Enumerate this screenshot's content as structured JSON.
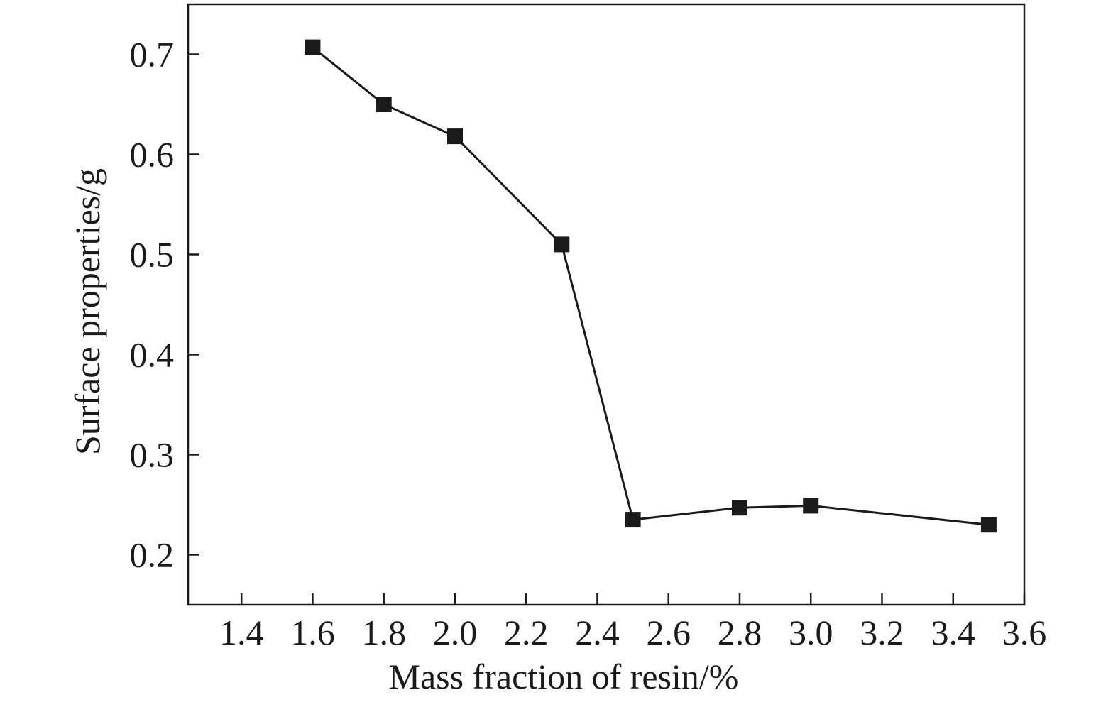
{
  "chart_data": {
    "type": "line",
    "title": "",
    "xlabel": "Mass fraction of resin/%",
    "ylabel": "Surface properties/g",
    "xlim": [
      1.25,
      3.6
    ],
    "ylim": [
      0.15,
      0.75
    ],
    "xticks": [
      "1.4",
      "1.6",
      "1.8",
      "2.0",
      "2.2",
      "2.4",
      "2.6",
      "2.8",
      "3.0",
      "3.2",
      "3.4",
      "3.6"
    ],
    "yticks": [
      "0.2",
      "0.3",
      "0.4",
      "0.5",
      "0.6",
      "0.7"
    ],
    "grid": false,
    "legend": "none",
    "marker": "square",
    "color": "#1a1a1a",
    "series": [
      {
        "x": [
          1.6,
          1.8,
          2.0,
          2.3,
          2.5,
          2.8,
          3.0,
          3.5
        ],
        "y": [
          0.707,
          0.65,
          0.618,
          0.51,
          0.235,
          0.247,
          0.249,
          0.23
        ]
      }
    ]
  }
}
